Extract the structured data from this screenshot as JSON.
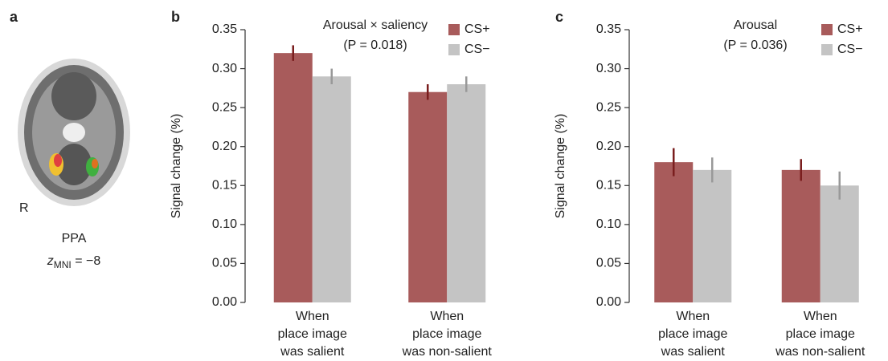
{
  "panel_a": {
    "letter": "a",
    "side": "R",
    "region": "PPA",
    "coord_var": "z",
    "coord_sub": "MNI",
    "coord_rest": " = −8"
  },
  "chart_data": [
    {
      "type": "bar",
      "panel": "b",
      "annotation": [
        "Arousal × saliency",
        "(P = 0.018)"
      ],
      "ylabel": "Signal change (%)",
      "categories": [
        [
          "When",
          "place image",
          "was salient"
        ],
        [
          "When",
          "place image",
          "was non-salient"
        ]
      ],
      "series": [
        {
          "name": "CS+",
          "color": "#a85b5b",
          "error_color": "#7a1e1e",
          "values": [
            0.32,
            0.27
          ],
          "errors": [
            0.01,
            0.01
          ]
        },
        {
          "name": "CS−",
          "color": "#c4c4c4",
          "error_color": "#999999",
          "values": [
            0.29,
            0.28
          ],
          "errors": [
            0.01,
            0.01
          ]
        }
      ],
      "ylim": [
        0,
        0.35
      ],
      "yticks": [
        {
          "value": 0,
          "label": "0.00"
        },
        {
          "value": 0.05,
          "label": "0.05"
        },
        {
          "value": 0.1,
          "label": "0.10"
        },
        {
          "value": 0.15,
          "label": "0.15"
        },
        {
          "value": 0.2,
          "label": "0.20"
        },
        {
          "value": 0.25,
          "label": "0.25"
        },
        {
          "value": 0.3,
          "label": "0.30"
        },
        {
          "value": 0.35,
          "label": "0.35"
        }
      ]
    },
    {
      "type": "bar",
      "panel": "c",
      "annotation": [
        "Arousal",
        "(P = 0.036)"
      ],
      "ylabel": "Signal change (%)",
      "categories": [
        [
          "When",
          "place image",
          "was salient"
        ],
        [
          "When",
          "place image",
          "was non-salient"
        ]
      ],
      "series": [
        {
          "name": "CS+",
          "color": "#a85b5b",
          "error_color": "#7a1e1e",
          "values": [
            0.18,
            0.17
          ],
          "errors": [
            0.018,
            0.014
          ]
        },
        {
          "name": "CS−",
          "color": "#c4c4c4",
          "error_color": "#999999",
          "values": [
            0.17,
            0.15
          ],
          "errors": [
            0.016,
            0.018
          ]
        }
      ],
      "ylim": [
        0,
        0.35
      ],
      "yticks": [
        {
          "value": 0,
          "label": "0.00"
        },
        {
          "value": 0.05,
          "label": "0.05"
        },
        {
          "value": 0.1,
          "label": "0.10"
        },
        {
          "value": 0.15,
          "label": "0.15"
        },
        {
          "value": 0.2,
          "label": "0.20"
        },
        {
          "value": 0.25,
          "label": "0.25"
        },
        {
          "value": 0.3,
          "label": "0.30"
        },
        {
          "value": 0.35,
          "label": "0.35"
        }
      ]
    }
  ]
}
